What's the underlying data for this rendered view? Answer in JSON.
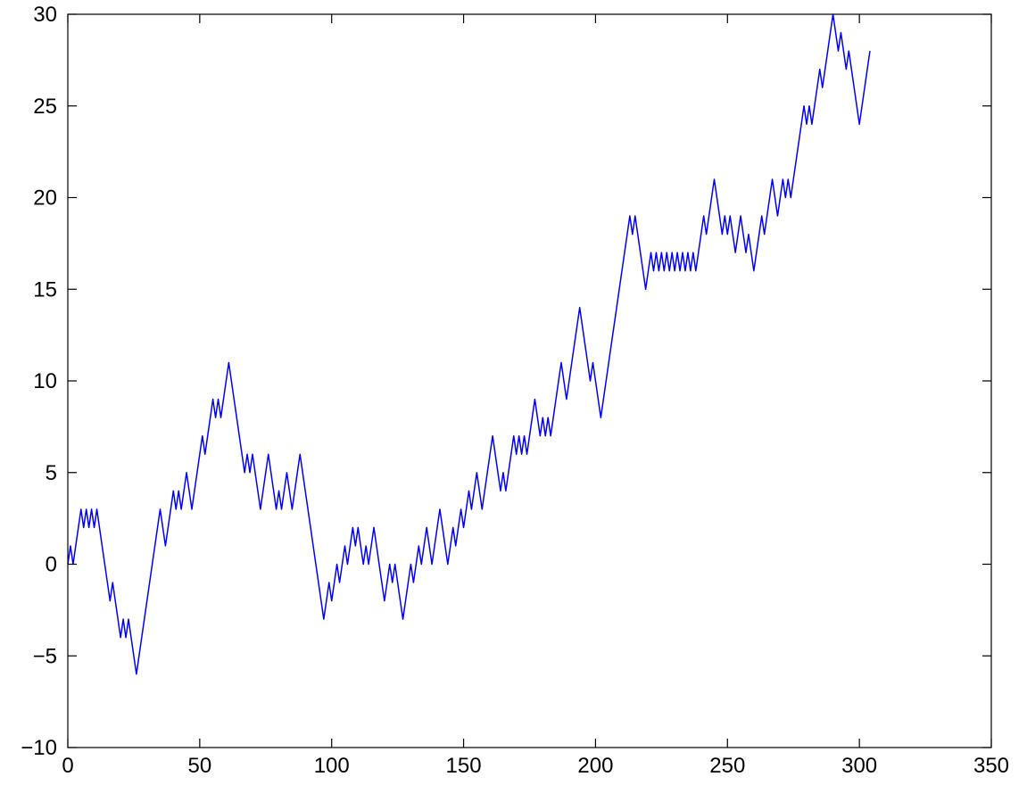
{
  "chart_data": {
    "type": "line",
    "title": "",
    "xlabel": "",
    "ylabel": "",
    "xlim": [
      0,
      350
    ],
    "ylim": [
      -10,
      30
    ],
    "xticks": [
      0,
      50,
      100,
      150,
      200,
      250,
      300,
      350
    ],
    "yticks": [
      -10,
      -5,
      0,
      5,
      10,
      15,
      20,
      25,
      30
    ],
    "grid": false,
    "legend": false,
    "colors": {
      "series": "#0000ff",
      "axes": "#000000",
      "background": "#ffffff"
    },
    "x_start": 0,
    "y": [
      0,
      1,
      0,
      1,
      2,
      3,
      2,
      3,
      2,
      3,
      2,
      3,
      2,
      1,
      0,
      -1,
      -2,
      -1,
      -2,
      -3,
      -4,
      -3,
      -4,
      -3,
      -4,
      -5,
      -6,
      -5,
      -4,
      -3,
      -2,
      -1,
      0,
      1,
      2,
      3,
      2,
      1,
      2,
      3,
      4,
      3,
      4,
      3,
      4,
      5,
      4,
      3,
      4,
      5,
      6,
      7,
      6,
      7,
      8,
      9,
      8,
      9,
      8,
      9,
      10,
      11,
      10,
      9,
      8,
      7,
      6,
      5,
      6,
      5,
      6,
      5,
      4,
      3,
      4,
      5,
      6,
      5,
      4,
      3,
      4,
      3,
      4,
      5,
      4,
      3,
      4,
      5,
      6,
      5,
      4,
      3,
      2,
      1,
      0,
      -1,
      -2,
      -3,
      -2,
      -1,
      -2,
      -1,
      0,
      -1,
      0,
      1,
      0,
      1,
      2,
      1,
      2,
      1,
      0,
      1,
      0,
      1,
      2,
      1,
      0,
      -1,
      -2,
      -1,
      0,
      -1,
      0,
      -1,
      -2,
      -3,
      -2,
      -1,
      0,
      -1,
      0,
      1,
      0,
      1,
      2,
      1,
      0,
      1,
      2,
      3,
      2,
      1,
      0,
      1,
      2,
      1,
      2,
      3,
      2,
      3,
      4,
      3,
      4,
      5,
      4,
      3,
      4,
      5,
      6,
      7,
      6,
      5,
      4,
      5,
      4,
      5,
      6,
      7,
      6,
      7,
      6,
      7,
      6,
      7,
      8,
      9,
      8,
      7,
      8,
      7,
      8,
      7,
      8,
      9,
      10,
      11,
      10,
      9,
      10,
      11,
      12,
      13,
      14,
      13,
      12,
      11,
      10,
      11,
      10,
      9,
      8,
      9,
      10,
      11,
      12,
      13,
      14,
      15,
      16,
      17,
      18,
      19,
      18,
      19,
      18,
      17,
      16,
      15,
      16,
      17,
      16,
      17,
      16,
      17,
      16,
      17,
      16,
      17,
      16,
      17,
      16,
      17,
      16,
      17,
      16,
      17,
      16,
      17,
      18,
      19,
      18,
      19,
      20,
      21,
      20,
      19,
      18,
      19,
      18,
      19,
      18,
      17,
      18,
      19,
      18,
      17,
      18,
      17,
      16,
      17,
      18,
      19,
      18,
      19,
      20,
      21,
      20,
      19,
      20,
      21,
      20,
      21,
      20,
      21,
      22,
      23,
      24,
      25,
      24,
      25,
      24,
      25,
      26,
      27,
      26,
      27,
      28,
      29,
      30,
      29,
      28,
      29,
      28,
      27,
      28,
      27,
      26,
      25,
      24,
      25,
      26,
      27,
      28
    ]
  }
}
